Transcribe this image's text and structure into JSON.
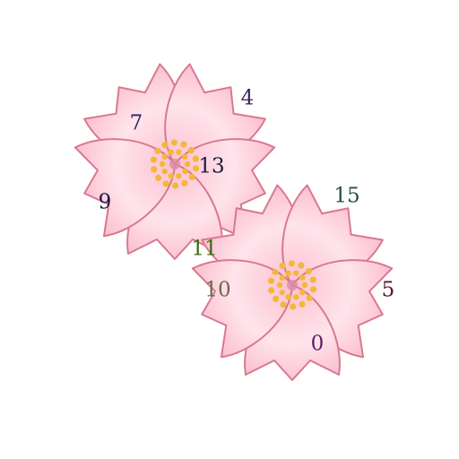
{
  "colors": {
    "petal_light": "#ffe4ec",
    "petal_mid": "#fbc0cf",
    "petal_outline": "#d9788f",
    "stamen": "#f4b73c",
    "center": "#d98ca6"
  },
  "flowers": [
    {
      "name": "flower-top-left"
    },
    {
      "name": "flower-bottom-right"
    }
  ],
  "numbers": [
    {
      "text": "4",
      "color": "#3d1f5c"
    },
    {
      "text": "7",
      "color": "#2b2a66"
    },
    {
      "text": "13",
      "color": "#1d1d3a"
    },
    {
      "text": "9",
      "color": "#1b1845"
    },
    {
      "text": "11",
      "color": "#3d6b12"
    },
    {
      "text": "15",
      "color": "#1f4f4a"
    },
    {
      "text": "10",
      "color": "#6b6b4a"
    },
    {
      "text": "5",
      "color": "#5a1232"
    },
    {
      "text": "0",
      "color": "#5c1f6b"
    }
  ]
}
